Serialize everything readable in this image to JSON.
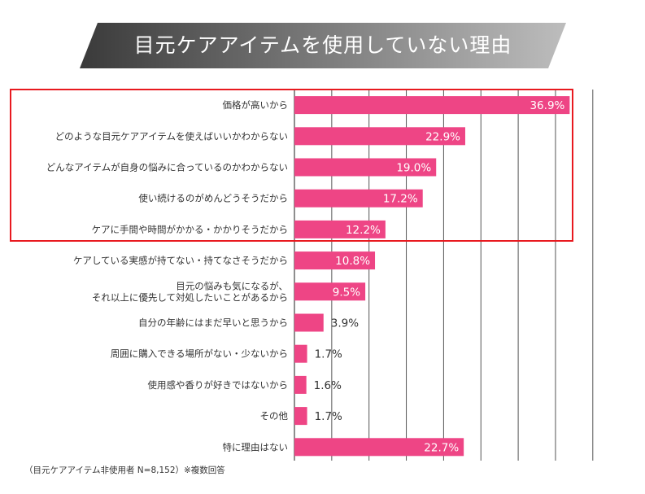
{
  "colors": {
    "bar": "#ee4585",
    "highlight": "#e8191f",
    "grid": "#555555",
    "banner_from": "#3a3a3a",
    "banner_to": "#bdbdbd"
  },
  "chart_data": {
    "type": "bar",
    "orientation": "horizontal",
    "title": "目元ケアアイテムを使用していない理由",
    "unit": "%",
    "xlim": [
      0,
      40
    ],
    "categories": [
      "価格が高いから",
      "どのような目元ケアアイテムを使えばいいかわからない",
      "どんなアイテムが自身の悩みに合っているのかわからない",
      "使い続けるのがめんどうそうだから",
      "ケアに手間や時間がかかる・かかりそうだから",
      "ケアしている実感が持てない・持てなさそうだから",
      "目元の悩みも気になるが、\nそれ以上に優先して対処したいことがあるから",
      "自分の年齢にはまだ早いと思うから",
      "周囲に購入できる場所がない・少ないから",
      "使用感や香りが好きではないから",
      "その他",
      "特に理由はない"
    ],
    "values": [
      36.9,
      22.9,
      19.0,
      17.2,
      12.2,
      10.8,
      9.5,
      3.9,
      1.7,
      1.6,
      1.7,
      22.7
    ],
    "value_labels": [
      "36.9%",
      "22.9%",
      "19.0%",
      "17.2%",
      "12.2%",
      "10.8%",
      "9.5%",
      "3.9%",
      "1.7%",
      "1.6%",
      "1.7%",
      "22.7%"
    ],
    "highlighted_categories": [
      0,
      1,
      2,
      3,
      4
    ]
  },
  "footnote": "（目元ケアアイテム非使用者 N=8,152）※複数回答"
}
